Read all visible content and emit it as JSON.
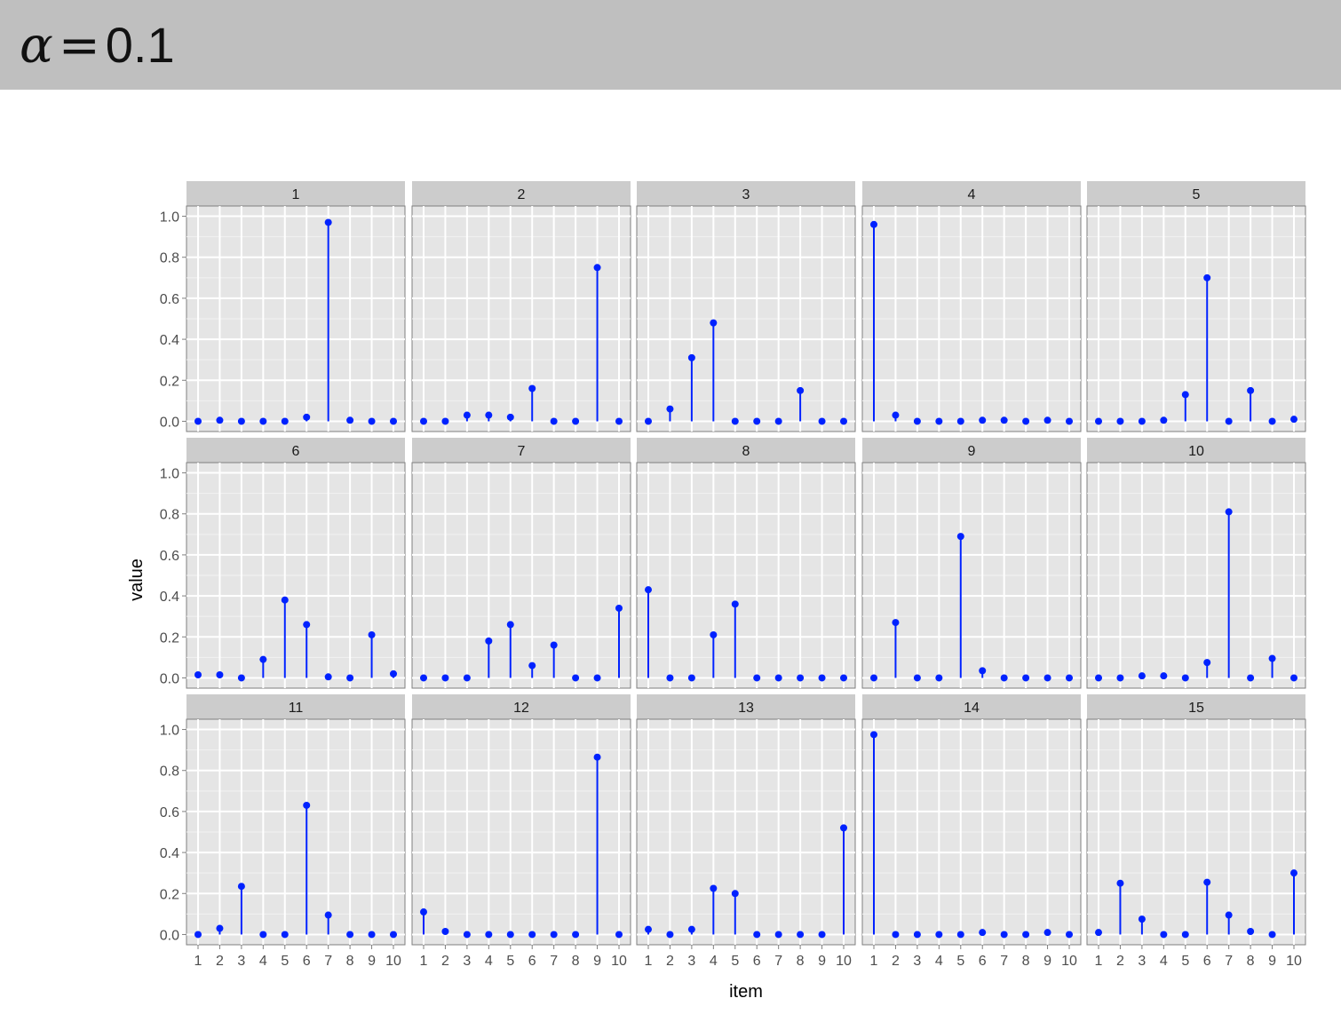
{
  "header": {
    "symbol": "α",
    "equals": "=",
    "value": "0.1"
  },
  "chart_data": {
    "type": "scatter",
    "style": "lollipop",
    "layout": "facet_grid_3x5",
    "xlabel": "item",
    "ylabel": "value",
    "categories": [
      "1",
      "2",
      "3",
      "4",
      "5",
      "6",
      "7",
      "8",
      "9",
      "10"
    ],
    "ylim": [
      -0.05,
      1.05
    ],
    "yticks": [
      "0.0",
      "0.2",
      "0.4",
      "0.6",
      "0.8",
      "1.0"
    ],
    "ytick_values": [
      0,
      0.2,
      0.4,
      0.6,
      0.8,
      1.0
    ],
    "grid": true,
    "color": "#0022ff",
    "panel_background": "#e5e5e5",
    "strip_background": "#cccccc",
    "facets": [
      {
        "label": "1",
        "values": [
          0.0,
          0.005,
          0.0,
          0.0,
          0.0,
          0.02,
          0.97,
          0.005,
          0.0,
          0.0
        ]
      },
      {
        "label": "2",
        "values": [
          0.0,
          0.0,
          0.03,
          0.03,
          0.02,
          0.16,
          0.0,
          0.0,
          0.75,
          0.0
        ]
      },
      {
        "label": "3",
        "values": [
          0.0,
          0.06,
          0.31,
          0.48,
          0.0,
          0.0,
          0.0,
          0.15,
          0.0,
          0.0
        ]
      },
      {
        "label": "4",
        "values": [
          0.96,
          0.03,
          0.0,
          0.0,
          0.0,
          0.005,
          0.005,
          0.0,
          0.005,
          0.0
        ]
      },
      {
        "label": "5",
        "values": [
          0.0,
          0.0,
          0.0,
          0.005,
          0.13,
          0.7,
          0.0,
          0.15,
          0.0,
          0.01
        ]
      },
      {
        "label": "6",
        "values": [
          0.015,
          0.015,
          0.0,
          0.09,
          0.38,
          0.26,
          0.005,
          0.0,
          0.21,
          0.02
        ]
      },
      {
        "label": "7",
        "values": [
          0.0,
          0.0,
          0.0,
          0.18,
          0.26,
          0.06,
          0.16,
          0.0,
          0.0,
          0.34
        ]
      },
      {
        "label": "8",
        "values": [
          0.43,
          0.0,
          0.0,
          0.21,
          0.36,
          0.0,
          0.0,
          0.0,
          0.0,
          0.0
        ]
      },
      {
        "label": "9",
        "values": [
          0.0,
          0.27,
          0.0,
          0.0,
          0.69,
          0.035,
          0.0,
          0.0,
          0.0,
          0.0
        ]
      },
      {
        "label": "10",
        "values": [
          0.0,
          0.0,
          0.01,
          0.01,
          0.0,
          0.075,
          0.81,
          0.0,
          0.095,
          0.0
        ]
      },
      {
        "label": "11",
        "values": [
          0.0,
          0.03,
          0.235,
          0.0,
          0.0,
          0.63,
          0.095,
          0.0,
          0.0,
          0.0
        ]
      },
      {
        "label": "12",
        "values": [
          0.11,
          0.015,
          0.0,
          0.0,
          0.0,
          0.0,
          0.0,
          0.0,
          0.865,
          0.0
        ]
      },
      {
        "label": "13",
        "values": [
          0.025,
          0.0,
          0.025,
          0.225,
          0.2,
          0.0,
          0.0,
          0.0,
          0.0,
          0.52
        ]
      },
      {
        "label": "14",
        "values": [
          0.975,
          0.0,
          0.0,
          0.0,
          0.0,
          0.01,
          0.0,
          0.0,
          0.01,
          0.0
        ]
      },
      {
        "label": "15",
        "values": [
          0.01,
          0.25,
          0.075,
          0.0,
          0.0,
          0.255,
          0.095,
          0.015,
          0.0,
          0.3
        ]
      }
    ]
  }
}
